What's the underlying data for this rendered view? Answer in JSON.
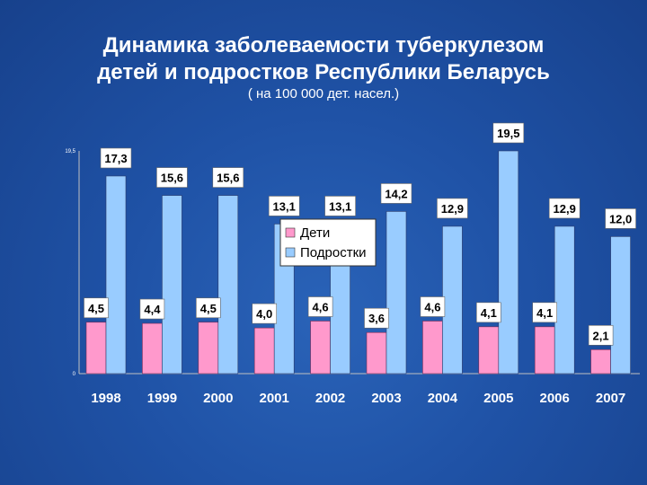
{
  "slide": {
    "title_line1": "Динамика заболеваемости туберкулезом",
    "title_line2": "детей и подростков Республики Беларусь",
    "subtitle": "( на 100 000 дет. насел.)"
  },
  "colors": {
    "children": "#ff99cc",
    "adolescents": "#99ccff",
    "axis": "#c0c0c0"
  },
  "chart_data": {
    "type": "bar",
    "categories": [
      "1998",
      "1999",
      "2000",
      "2001",
      "2002",
      "2003",
      "2004",
      "2005",
      "2006",
      "2007"
    ],
    "series": [
      {
        "name": "Дети",
        "values": [
          4.5,
          4.4,
          4.5,
          4.0,
          4.6,
          3.6,
          4.6,
          4.1,
          4.1,
          2.1
        ],
        "labels": [
          "4,5",
          "4,4",
          "4,5",
          "4,0",
          "4,6",
          "3,6",
          "4,6",
          "4,1",
          "4,1",
          "2,1"
        ]
      },
      {
        "name": "Подростки",
        "values": [
          17.3,
          15.6,
          15.6,
          13.1,
          13.1,
          14.2,
          12.9,
          19.5,
          12.9,
          12.0
        ],
        "labels": [
          "17,3",
          "15,6",
          "15,6",
          "13,1",
          "13,1",
          "14,2",
          "12,9",
          "19,5",
          "12,9",
          "12,0"
        ]
      }
    ],
    "y_ticks": [
      "0",
      "19,5"
    ],
    "ylim": [
      0,
      19.5
    ],
    "legend": "center",
    "grid": false
  }
}
